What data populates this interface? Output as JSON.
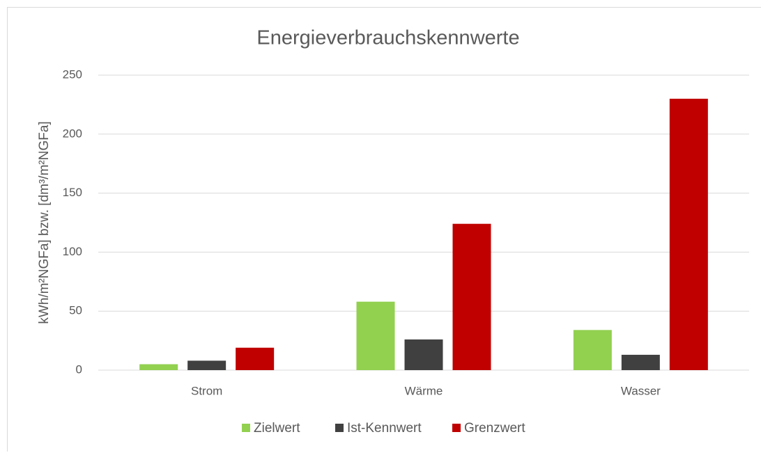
{
  "chart_data": {
    "type": "bar",
    "title": "Energieverbrauchskennwerte",
    "y_label": "kWh/m²NGFa] bzw. [dm³/m²NGFa]",
    "categories": [
      "Strom",
      "Wärme",
      "Wasser"
    ],
    "series": [
      {
        "name": "Zielwert",
        "color": "#92d050",
        "values": [
          5,
          58,
          34
        ]
      },
      {
        "name": "Ist-Kennwert",
        "color": "#404040",
        "values": [
          8,
          26,
          13
        ]
      },
      {
        "name": "Grenzwert",
        "color": "#c00000",
        "values": [
          19,
          124,
          230
        ]
      }
    ],
    "ylim": [
      0,
      250
    ],
    "yticks": [
      0,
      50,
      100,
      150,
      200,
      250
    ],
    "grid": true,
    "legend": "bottom"
  }
}
